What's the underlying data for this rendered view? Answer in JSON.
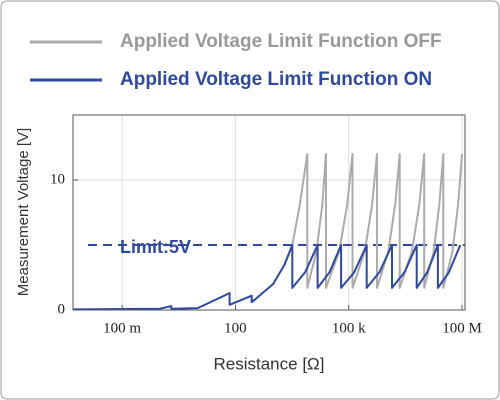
{
  "chart_data": {
    "type": "line",
    "xlabel": "Resistance [Ω]",
    "ylabel": "Measurement Voltage [V]",
    "annotation": "Limit:5V",
    "limit_line": 5,
    "log_x": true,
    "grid": true,
    "legend": "top",
    "xlim": [
      0.005,
      120000000
    ],
    "ylim": [
      0,
      15
    ],
    "xticks": [
      {
        "value": 0.1,
        "label": "100 m"
      },
      100,
      {
        "value": 100000,
        "label": "100 k"
      },
      {
        "value": 100000000,
        "label": "100 M"
      }
    ],
    "yticks": [
      0,
      10
    ],
    "series": [
      {
        "name": "Applied Voltage Limit Function OFF",
        "color": "#ababab",
        "x": [
          2000,
          3200,
          5000,
          8000,
          8000,
          14000,
          20000,
          25000,
          25000,
          56000,
          91000,
          126000,
          126000,
          266000,
          417000,
          560000,
          560000,
          1120000,
          1700000,
          2240000,
          2240000,
          4700000,
          7400000,
          10000000,
          10000000,
          17800000,
          25000000,
          32000000,
          32000000,
          56000000,
          79000000,
          100000000
        ],
        "values": [
          3.5,
          5,
          8,
          12,
          1.7,
          4.5,
          8.1,
          12,
          1.7,
          4.5,
          8.1,
          12,
          1.7,
          4.5,
          8.1,
          12,
          1.7,
          4.5,
          8.1,
          12,
          1.7,
          4.5,
          8.1,
          12,
          1.7,
          4.5,
          8.1,
          12,
          1.7,
          4.5,
          8.1,
          12
        ]
      },
      {
        "name": "Applied Voltage Limit Function ON",
        "color": "#2e4a9e",
        "x": [
          0.005,
          1,
          2,
          2,
          10,
          70,
          70,
          270,
          270,
          1000,
          2000,
          3200,
          3200,
          7000,
          15000,
          15000,
          31000,
          63000,
          63000,
          140000,
          300000,
          300000,
          650000,
          1400000,
          1400000,
          3000000,
          6300000,
          6300000,
          12000000,
          23000000,
          23000000,
          45000000,
          90000000
        ],
        "values": [
          0.05,
          0.1,
          0.3,
          0.1,
          0.15,
          1.3,
          0.4,
          1.1,
          0.6,
          2.0,
          3.5,
          5,
          1.7,
          2.9,
          5,
          1.7,
          2.9,
          5,
          1.7,
          2.9,
          5,
          1.7,
          2.9,
          5,
          1.7,
          2.9,
          5,
          1.7,
          2.9,
          5,
          1.7,
          2.9,
          5
        ]
      }
    ]
  }
}
